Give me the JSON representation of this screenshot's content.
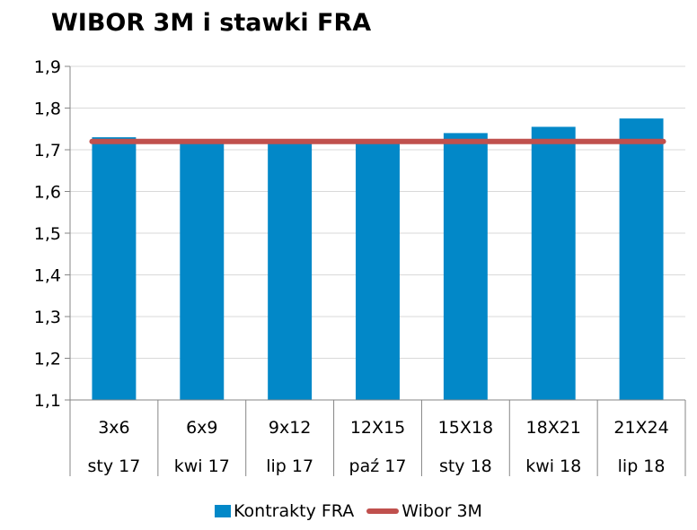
{
  "chart_data": {
    "type": "bar",
    "title": "WIBOR 3M i stawki FRA",
    "categories": [
      "3x6",
      "6x9",
      "9x12",
      "12X15",
      "15X18",
      "18X21",
      "21X24"
    ],
    "category_dates": [
      "sty 17",
      "kwi 17",
      "lip 17",
      "paź 17",
      "sty 18",
      "kwi 18",
      "lip 18"
    ],
    "series": [
      {
        "name": "Kontrakty FRA",
        "type": "bar",
        "color": "#0288c8",
        "values": [
          1.73,
          1.72,
          1.72,
          1.72,
          1.74,
          1.755,
          1.775
        ]
      },
      {
        "name": "Wibor 3M",
        "type": "line",
        "color": "#c0504d",
        "values": [
          1.72,
          1.72,
          1.72,
          1.72,
          1.72,
          1.72,
          1.72
        ]
      }
    ],
    "ylim": [
      1.1,
      1.9
    ],
    "yticks": [
      "1,1",
      "1,2",
      "1,3",
      "1,4",
      "1,5",
      "1,6",
      "1,7",
      "1,8",
      "1,9"
    ],
    "grid": true,
    "legend": "bottom"
  }
}
